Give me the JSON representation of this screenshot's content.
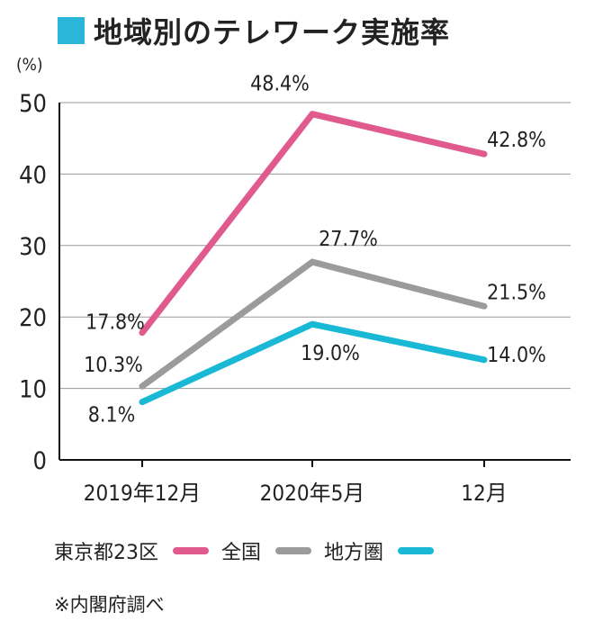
{
  "title": "地域別のテレワーク実施率",
  "source_note": "※内閣府調べ",
  "colors": {
    "title_square": "#29b6d8",
    "grid": "#999999",
    "text": "#222222"
  },
  "chart_data": {
    "type": "line",
    "title": "地域別のテレワーク実施率",
    "ylabel": "(%)",
    "xlabel": "",
    "ylim": [
      0,
      50
    ],
    "yticks": [
      0,
      10,
      20,
      30,
      40,
      50
    ],
    "grid": true,
    "legend": "bottom",
    "categories": [
      "2019年12月",
      "2020年5月",
      "12月"
    ],
    "series": [
      {
        "name": "東京都23区",
        "color": "#e05a8e",
        "values": [
          17.8,
          48.4,
          42.8
        ],
        "labels": [
          "17.8%",
          "48.4%",
          "42.8%"
        ]
      },
      {
        "name": "全国",
        "color": "#9b9b9b",
        "values": [
          10.3,
          27.7,
          21.5
        ],
        "labels": [
          "10.3%",
          "27.7%",
          "21.5%"
        ]
      },
      {
        "name": "地方圏",
        "color": "#19b9d6",
        "values": [
          8.1,
          19.0,
          14.0
        ],
        "labels": [
          "8.1%",
          "19.0%",
          "14.0%"
        ]
      }
    ]
  }
}
